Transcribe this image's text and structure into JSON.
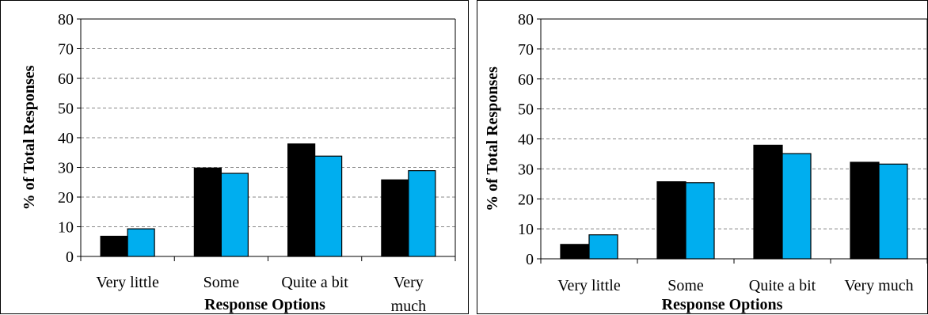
{
  "chart_data": [
    {
      "type": "bar",
      "title": "",
      "ylabel": "% of Total Responses",
      "xlabel": "Response Options",
      "categories": [
        "Very little",
        "Some",
        "Quite a bit",
        "Very much"
      ],
      "category_label_lines": [
        [
          "Very little"
        ],
        [
          "Some"
        ],
        [
          "Quite a bit"
        ],
        [
          "Very",
          "much"
        ]
      ],
      "series": [
        {
          "color": "#000000",
          "values": [
            6.8,
            29.8,
            37.9,
            25.8
          ]
        },
        {
          "color": "#00AEEF",
          "values": [
            9.3,
            28.0,
            33.8,
            28.9
          ]
        }
      ],
      "ylim": [
        0,
        80
      ],
      "yticks": [
        "0",
        "10",
        "20",
        "30",
        "40",
        "50",
        "60",
        "70",
        "80"
      ],
      "grid": true,
      "legend": "none"
    },
    {
      "type": "bar",
      "title": "",
      "ylabel": "% of Total Responses",
      "xlabel": "Response Options",
      "categories": [
        "Very little",
        "Some",
        "Quite a bit",
        "Very much"
      ],
      "category_label_lines": [
        [
          "Very little"
        ],
        [
          "Some"
        ],
        [
          "Quite a bit"
        ],
        [
          "Very much"
        ]
      ],
      "series": [
        {
          "color": "#000000",
          "values": [
            4.8,
            25.7,
            37.9,
            32.2
          ]
        },
        {
          "color": "#00AEEF",
          "values": [
            8.0,
            25.4,
            35.1,
            31.6
          ]
        }
      ],
      "ylim": [
        0,
        80
      ],
      "yticks": [
        "0",
        "10",
        "20",
        "30",
        "40",
        "50",
        "60",
        "70",
        "80"
      ],
      "grid": true,
      "legend": "none"
    }
  ]
}
